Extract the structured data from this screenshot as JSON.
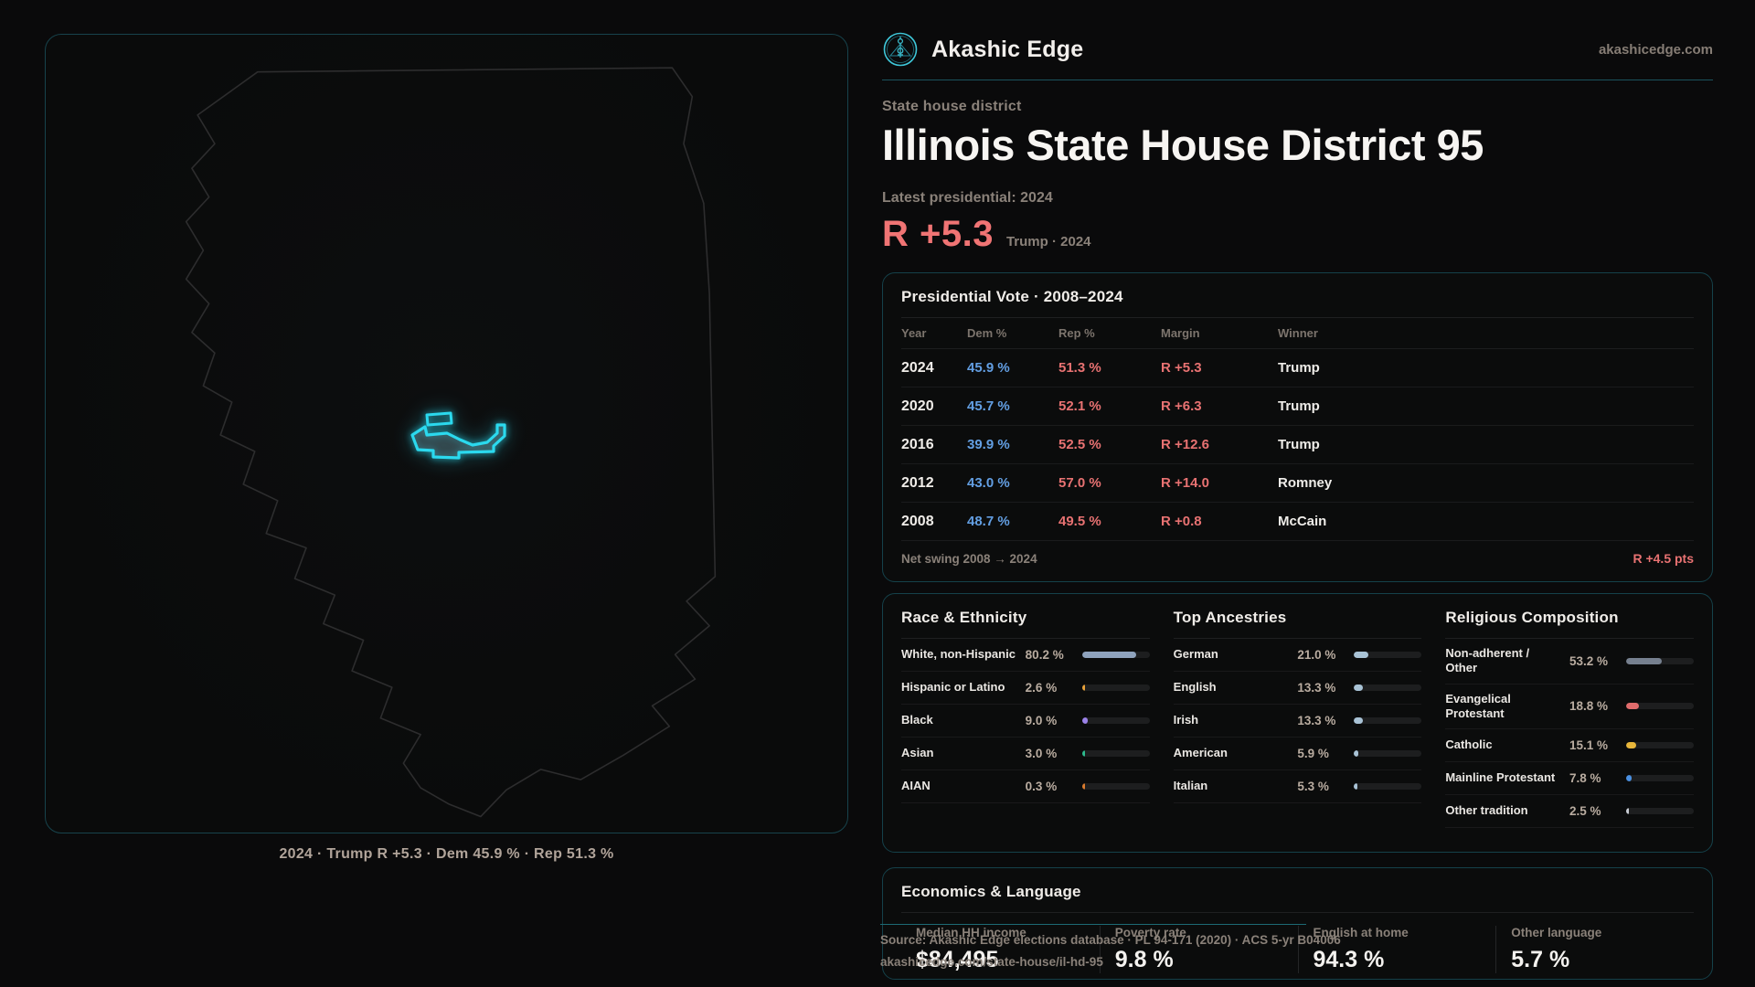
{
  "brand": {
    "name": "Akashic Edge",
    "domain": "akashicedge.com"
  },
  "header": {
    "eyebrow": "State house district",
    "title": "Illinois State House District 95",
    "latest_label": "Latest presidential: 2024",
    "margin_value": "R +5.3",
    "margin_context": "Trump · 2024"
  },
  "map": {
    "caption": "2024 · Trump R +5.3 · Dem 45.9 % · Rep 51.3 %",
    "district_color": "#2bd9ee",
    "state_outline_color": "#2d2d2e"
  },
  "pres_table": {
    "title": "Presidential Vote · 2008–2024",
    "columns": [
      "Year",
      "Dem %",
      "Rep %",
      "Margin",
      "Winner"
    ],
    "rows": [
      {
        "year": "2024",
        "dem": "45.9 %",
        "rep": "51.3 %",
        "margin": "R +5.3",
        "winner": "Trump"
      },
      {
        "year": "2020",
        "dem": "45.7 %",
        "rep": "52.1 %",
        "margin": "R +6.3",
        "winner": "Trump"
      },
      {
        "year": "2016",
        "dem": "39.9 %",
        "rep": "52.5 %",
        "margin": "R +12.6",
        "winner": "Trump"
      },
      {
        "year": "2012",
        "dem": "43.0 %",
        "rep": "57.0 %",
        "margin": "R +14.0",
        "winner": "Romney"
      },
      {
        "year": "2008",
        "dem": "48.7 %",
        "rep": "49.5 %",
        "margin": "R +0.8",
        "winner": "McCain"
      }
    ],
    "footer": {
      "label": "Net swing 2008 → 2024",
      "value": "R +4.5 pts"
    }
  },
  "race": {
    "title": "Race & Ethnicity",
    "rows": [
      {
        "label": "White, non-Hispanic",
        "value": "80.2 %",
        "pct": 80.2,
        "color": "#8fa3bd"
      },
      {
        "label": "Hispanic or Latino",
        "value": "2.6 %",
        "pct": 2.6,
        "color": "#e8a23a"
      },
      {
        "label": "Black",
        "value": "9.0 %",
        "pct": 9.0,
        "color": "#9b82e8"
      },
      {
        "label": "Asian",
        "value": "3.0 %",
        "pct": 3.0,
        "color": "#2dba8e"
      },
      {
        "label": "AIAN",
        "value": "0.3 %",
        "pct": 0.3,
        "color": "#d97b2e"
      }
    ]
  },
  "ancestries": {
    "title": "Top Ancestries",
    "rows": [
      {
        "label": "German",
        "value": "21.0 %",
        "pct": 21.0,
        "color": "#a9c3d6"
      },
      {
        "label": "English",
        "value": "13.3 %",
        "pct": 13.3,
        "color": "#a9c3d6"
      },
      {
        "label": "Irish",
        "value": "13.3 %",
        "pct": 13.3,
        "color": "#a9c3d6"
      },
      {
        "label": "American",
        "value": "5.9 %",
        "pct": 5.9,
        "color": "#a9c3d6"
      },
      {
        "label": "Italian",
        "value": "5.3 %",
        "pct": 5.3,
        "color": "#a9c3d6"
      }
    ]
  },
  "religion": {
    "title": "Religious Composition",
    "rows": [
      {
        "label": "Non-adherent / Other",
        "value": "53.2 %",
        "pct": 53.2,
        "color": "#76808f"
      },
      {
        "label": "Evangelical Protestant",
        "value": "18.8 %",
        "pct": 18.8,
        "color": "#e06c6c"
      },
      {
        "label": "Catholic",
        "value": "15.1 %",
        "pct": 15.1,
        "color": "#e8b63a"
      },
      {
        "label": "Mainline Protestant",
        "value": "7.8 %",
        "pct": 7.8,
        "color": "#4a90e2"
      },
      {
        "label": "Other tradition",
        "value": "2.5 %",
        "pct": 2.5,
        "color": "#c9cdd4"
      }
    ]
  },
  "economics": {
    "title": "Economics & Language",
    "stats": [
      {
        "label": "Median HH income",
        "value": "$84,495"
      },
      {
        "label": "Poverty rate",
        "value": "9.8 %"
      },
      {
        "label": "English at home",
        "value": "94.3 %"
      },
      {
        "label": "Other language",
        "value": "5.7 %"
      }
    ]
  },
  "source": {
    "line1": "Source: Akashic Edge elections database · PL 94-171 (2020) · ACS 5-yr B04006",
    "line2": "akashicedge.com/state-house/il-hd-95"
  }
}
